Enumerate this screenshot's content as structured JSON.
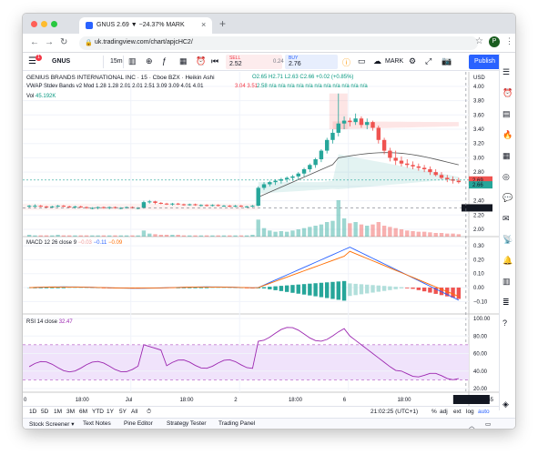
{
  "browser": {
    "tab_title": "GNUS 2.69 ▼ −24.37% MARK",
    "url": "uk.tradingview.com/chart/apjcHC2/",
    "profile_initial": "P",
    "traffic_colors": [
      "#ff5f57",
      "#febc2e",
      "#28c840"
    ]
  },
  "toolbar": {
    "symbol": "GNUS",
    "interval": "15m",
    "sell_label": "SELL",
    "sell_price": "2.52",
    "spread": "0.24",
    "buy_label": "BUY",
    "buy_price": "2.76",
    "account": "MARK",
    "publish_label": "Publish",
    "notification_count": "1"
  },
  "main_legend": {
    "title": "GENIUS BRANDS INTERNATIONAL INC · 15 · Cboe BZX · Heikin Ashi",
    "ohlc": "O2.65 H2.71 L2.63 C2.66 +0.02 (+0.85%)",
    "vwap": "VWAP Stdev Bands v2 Mod 1.28 1.28 2.01 2.01 2.51 3.09 3.09 4.01 4.01",
    "vwap_extra_red": "3.04 3.51",
    "vwap_extra_green": "2.58 n/a n/a n/a n/a n/a n/a n/a n/a n/a n/a n/a",
    "vol_label": "Vol",
    "vol_value": "45.192K"
  },
  "macd_legend": {
    "label": "MACD 12 26 close 9",
    "v1": "−0.03",
    "v2": "−0.11",
    "v3": "−0.09"
  },
  "rsi_legend": {
    "label": "RSI 14 close",
    "value": "32.47"
  },
  "price_axis": {
    "currency": "USD",
    "ticks": [
      "4.00",
      "3.80",
      "3.60",
      "3.40",
      "3.20",
      "3.00",
      "2.80",
      "2.60",
      "2.40",
      "2.20",
      "2.00"
    ],
    "last_price": "2.69",
    "sub_price": "2.66",
    "crosshair_price": "2.30"
  },
  "macd_axis": {
    "ticks": [
      "0.30",
      "0.20",
      "0.10",
      "0.00",
      "−0.10"
    ]
  },
  "rsi_axis": {
    "ticks": [
      "100.00",
      "80.00",
      "60.00",
      "40.00",
      "20.00"
    ]
  },
  "time_axis": {
    "ticks": [
      "0",
      "18:00",
      "Jul",
      "18:00",
      "2",
      "18:00",
      "6",
      "18:00"
    ],
    "crosshair_time": "07 Jul '20  15:45"
  },
  "bottom_bar": {
    "ranges": [
      "1D",
      "5D",
      "1M",
      "3M",
      "6M",
      "YTD",
      "1Y",
      "5Y",
      "All"
    ],
    "clock": "21:02:25 (UTC+1)",
    "percent": "%",
    "adj": "adj",
    "ext": "ext",
    "log": "log",
    "auto": "auto"
  },
  "panel_tabs": [
    "Stock Screener",
    "Text Notes",
    "Pine Editor",
    "Strategy Tester",
    "Trading Panel"
  ],
  "colors": {
    "up": "#26a69a",
    "down": "#ef5350",
    "macd": "#2962ff",
    "signal": "#ff6d00",
    "rsi": "#9c27b0",
    "rsi_band": "#f0e3fb",
    "accent": "#2962ff"
  },
  "chart_data": [
    {
      "type": "candlestick",
      "ylim": [
        2.0,
        4.1
      ],
      "candles": [
        [
          2.32,
          2.34,
          2.3,
          2.33
        ],
        [
          2.33,
          2.35,
          2.31,
          2.33
        ],
        [
          2.33,
          2.34,
          2.31,
          2.32
        ],
        [
          2.32,
          2.33,
          2.3,
          2.31
        ],
        [
          2.31,
          2.33,
          2.3,
          2.32
        ],
        [
          2.32,
          2.34,
          2.31,
          2.33
        ],
        [
          2.33,
          2.34,
          2.31,
          2.32
        ],
        [
          2.32,
          2.33,
          2.3,
          2.31
        ],
        [
          2.31,
          2.33,
          2.29,
          2.32
        ],
        [
          2.32,
          2.33,
          2.3,
          2.31
        ],
        [
          2.31,
          2.32,
          2.29,
          2.3
        ],
        [
          2.3,
          2.31,
          2.28,
          2.3
        ],
        [
          2.3,
          2.32,
          2.28,
          2.31
        ],
        [
          2.31,
          2.32,
          2.29,
          2.3
        ],
        [
          2.3,
          2.32,
          2.28,
          2.31
        ],
        [
          2.31,
          2.32,
          2.29,
          2.3
        ],
        [
          2.3,
          2.31,
          2.28,
          2.3
        ],
        [
          2.3,
          2.32,
          2.29,
          2.31
        ],
        [
          2.31,
          2.32,
          2.29,
          2.3
        ],
        [
          2.3,
          2.31,
          2.28,
          2.3
        ],
        [
          2.3,
          2.4,
          2.29,
          2.38
        ],
        [
          2.38,
          2.41,
          2.36,
          2.39
        ],
        [
          2.39,
          2.4,
          2.35,
          2.37
        ],
        [
          2.37,
          2.38,
          2.35,
          2.36
        ],
        [
          2.36,
          2.37,
          2.34,
          2.35
        ],
        [
          2.35,
          2.37,
          2.33,
          2.36
        ],
        [
          2.36,
          2.37,
          2.34,
          2.35
        ],
        [
          2.35,
          2.36,
          2.33,
          2.34
        ],
        [
          2.34,
          2.36,
          2.33,
          2.35
        ],
        [
          2.35,
          2.36,
          2.33,
          2.34
        ],
        [
          2.34,
          2.35,
          2.32,
          2.34
        ],
        [
          2.34,
          2.35,
          2.32,
          2.33
        ],
        [
          2.33,
          2.35,
          2.32,
          2.34
        ],
        [
          2.34,
          2.35,
          2.32,
          2.33
        ],
        [
          2.33,
          2.34,
          2.32,
          2.33
        ],
        [
          2.33,
          2.34,
          2.31,
          2.32
        ],
        [
          2.32,
          2.34,
          2.31,
          2.33
        ],
        [
          2.33,
          2.34,
          2.31,
          2.32
        ],
        [
          2.32,
          2.33,
          2.31,
          2.32
        ],
        [
          2.32,
          2.34,
          2.31,
          2.33
        ],
        [
          2.33,
          2.6,
          2.32,
          2.58
        ],
        [
          2.58,
          2.66,
          2.55,
          2.63
        ],
        [
          2.63,
          2.68,
          2.6,
          2.66
        ],
        [
          2.66,
          2.7,
          2.62,
          2.68
        ],
        [
          2.68,
          2.72,
          2.64,
          2.7
        ],
        [
          2.7,
          2.74,
          2.66,
          2.72
        ],
        [
          2.72,
          2.76,
          2.68,
          2.74
        ],
        [
          2.74,
          2.8,
          2.7,
          2.78
        ],
        [
          2.78,
          2.86,
          2.74,
          2.84
        ],
        [
          2.84,
          2.92,
          2.8,
          2.9
        ],
        [
          2.9,
          3.0,
          2.86,
          2.98
        ],
        [
          2.98,
          3.12,
          2.94,
          3.1
        ],
        [
          3.1,
          3.28,
          3.06,
          3.25
        ],
        [
          3.25,
          3.4,
          3.2,
          3.35
        ],
        [
          3.35,
          3.9,
          3.3,
          3.48
        ],
        [
          3.48,
          3.58,
          3.4,
          3.52
        ],
        [
          3.52,
          3.56,
          3.44,
          3.5
        ],
        [
          3.5,
          3.62,
          3.46,
          3.55
        ],
        [
          3.55,
          3.58,
          3.42,
          3.46
        ],
        [
          3.46,
          3.55,
          3.4,
          3.5
        ],
        [
          3.5,
          3.52,
          3.38,
          3.42
        ],
        [
          3.42,
          3.45,
          3.2,
          3.25
        ],
        [
          3.25,
          3.28,
          3.05,
          3.1
        ],
        [
          3.1,
          3.14,
          2.95,
          3.0
        ],
        [
          3.0,
          3.1,
          2.9,
          2.96
        ],
        [
          2.96,
          3.02,
          2.88,
          2.92
        ],
        [
          2.92,
          2.98,
          2.86,
          2.9
        ],
        [
          2.9,
          2.95,
          2.84,
          2.88
        ],
        [
          2.88,
          2.92,
          2.82,
          2.86
        ],
        [
          2.86,
          2.9,
          2.8,
          2.84
        ],
        [
          2.84,
          2.88,
          2.76,
          2.8
        ],
        [
          2.8,
          2.84,
          2.74,
          2.76
        ],
        [
          2.76,
          2.8,
          2.7,
          2.72
        ],
        [
          2.72,
          2.76,
          2.66,
          2.7
        ],
        [
          2.7,
          2.74,
          2.64,
          2.68
        ],
        [
          2.68,
          2.72,
          2.64,
          2.66
        ]
      ],
      "volume": [
        3,
        2,
        2,
        2,
        2,
        3,
        2,
        2,
        2,
        2,
        2,
        2,
        2,
        2,
        2,
        2,
        2,
        2,
        2,
        2,
        10,
        5,
        4,
        3,
        3,
        3,
        3,
        2,
        2,
        2,
        2,
        2,
        2,
        2,
        2,
        2,
        2,
        2,
        2,
        3,
        28,
        14,
        10,
        8,
        9,
        8,
        10,
        12,
        14,
        16,
        18,
        20,
        24,
        26,
        60,
        30,
        22,
        24,
        20,
        18,
        20,
        24,
        18,
        16,
        14,
        12,
        10,
        9,
        8,
        8,
        7,
        6,
        6,
        5,
        5,
        4
      ]
    },
    {
      "type": "macd",
      "ylim": [
        -0.15,
        0.32
      ]
    },
    {
      "type": "rsi",
      "ylim": [
        20,
        100
      ]
    }
  ]
}
